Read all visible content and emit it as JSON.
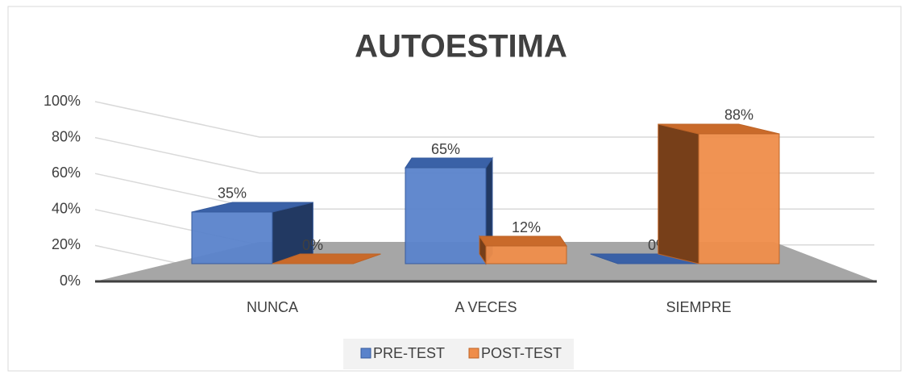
{
  "chart_data": {
    "type": "bar3d",
    "title": "AUTOESTIMA",
    "categories": [
      "NUNCA",
      "A VECES",
      "SIEMPRE"
    ],
    "series": [
      {
        "name": "PRE-TEST",
        "color": "#4472c4",
        "values": [
          35,
          65,
          0
        ],
        "value_labels": [
          "35%",
          "65%",
          "0%"
        ]
      },
      {
        "name": "POST-TEST",
        "color": "#ed7d31",
        "values": [
          0,
          12,
          88
        ],
        "value_labels": [
          "0%",
          "12%",
          "88%"
        ]
      }
    ],
    "ylim": [
      0,
      100
    ],
    "yticks": [
      {
        "value": 0,
        "label": "0%"
      },
      {
        "value": 20,
        "label": "20%"
      },
      {
        "value": 40,
        "label": "40%"
      },
      {
        "value": 60,
        "label": "60%"
      },
      {
        "value": 80,
        "label": "80%"
      },
      {
        "value": 100,
        "label": "100%"
      }
    ],
    "grid": true,
    "legend": "bottom"
  }
}
